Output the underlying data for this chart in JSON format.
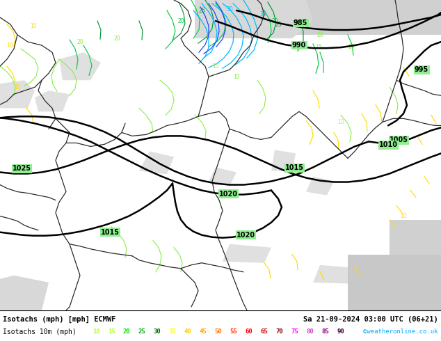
{
  "title_left": "Isotachs (mph) [mph] ECMWF",
  "title_right": "Sa 21-09-2024 03:00 UTC (06+21)",
  "legend_label": "Isotachs 10m (mph)",
  "watermark": "©weatheronline.co.uk",
  "legend_values": [
    10,
    15,
    20,
    25,
    30,
    35,
    40,
    45,
    50,
    55,
    60,
    65,
    70,
    75,
    80,
    85,
    90
  ],
  "legend_colors": [
    "#adff2f",
    "#adff2f",
    "#00e000",
    "#00aa00",
    "#006600",
    "#ffff00",
    "#ffd000",
    "#ffa000",
    "#ff7000",
    "#ff3000",
    "#ff0000",
    "#cc0000",
    "#880000",
    "#ff00ff",
    "#cc44cc",
    "#880088",
    "#440044"
  ],
  "bg_color": "#90ee90",
  "map_bg": "#90ee90",
  "figsize": [
    6.34,
    4.9
  ],
  "dpi": 100,
  "map_green_light": "#90ee90",
  "map_green_mid": "#78d878",
  "map_gray": "#c8c8c8",
  "map_white": "#e8e8e8",
  "border_color": "#333333",
  "pressure_color": "#000000",
  "isotach_cyan": "#00ccff",
  "isotach_blue": "#0033ff",
  "isotach_green_light": "#99ff44",
  "isotach_green": "#00cc00",
  "isotach_green_dark": "#007700",
  "isotach_yellow": "#ffee00",
  "isotach_orange": "#ff9900"
}
